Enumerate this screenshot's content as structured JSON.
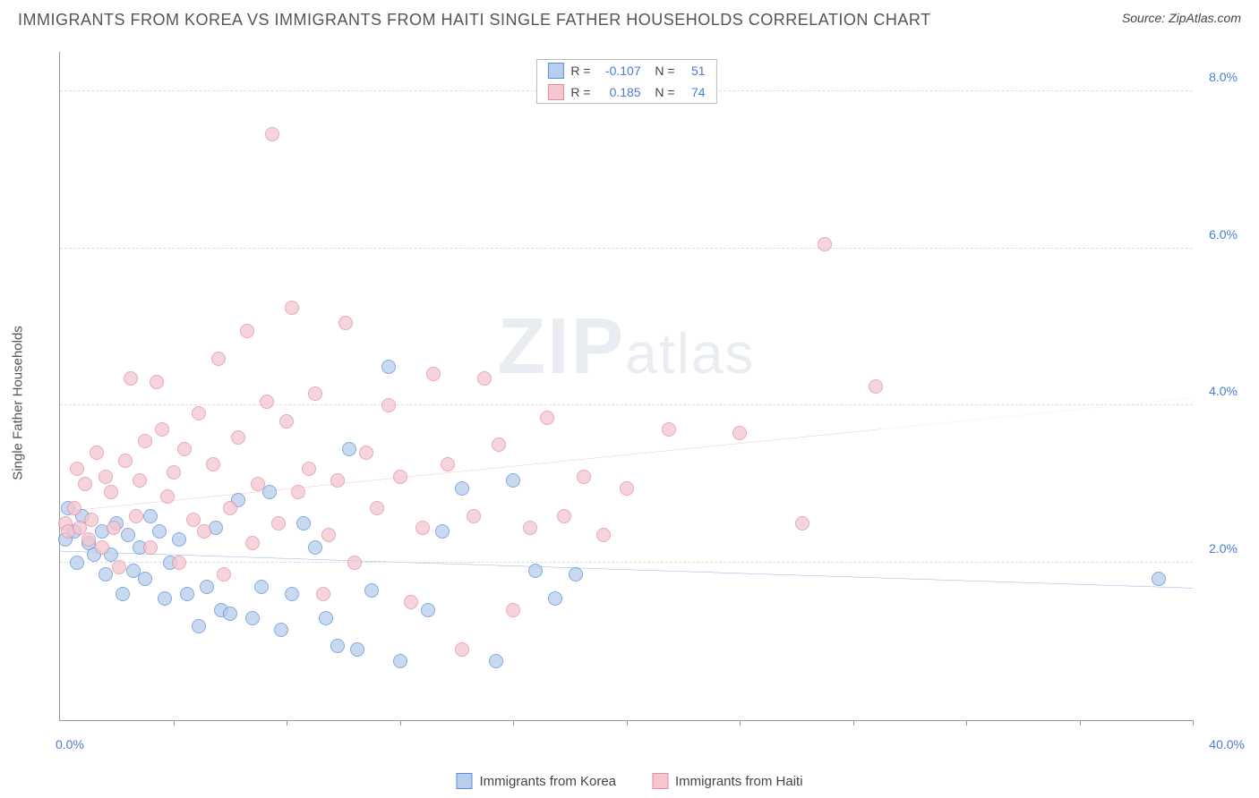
{
  "header": {
    "title": "IMMIGRANTS FROM KOREA VS IMMIGRANTS FROM HAITI SINGLE FATHER HOUSEHOLDS CORRELATION CHART",
    "source_prefix": "Source: ",
    "source_site": "ZipAtlas.com"
  },
  "watermark": {
    "main": "ZIP",
    "tail": "atlas"
  },
  "chart": {
    "type": "scatter",
    "y_axis_title": "Single Father Households",
    "xlim": [
      0,
      40
    ],
    "ylim": [
      0,
      8.5
    ],
    "x_tick_count": 10,
    "y_ticks": [
      2.0,
      4.0,
      6.0,
      8.0
    ],
    "y_tick_labels": [
      "2.0%",
      "4.0%",
      "6.0%",
      "8.0%"
    ],
    "x_min_label": "0.0%",
    "x_max_label": "40.0%",
    "background_color": "#ffffff",
    "grid_color": "#dddddd",
    "series": [
      {
        "key": "korea",
        "label": "Immigrants from Korea",
        "r_value": "-0.107",
        "n_value": "51",
        "fill": "#b7ceec",
        "stroke": "#5a8fd6",
        "trend": {
          "y_at_xmin": 2.15,
          "y_at_xmax": 1.68,
          "solid_until_x": 40
        },
        "marker_radius": 8,
        "points": [
          [
            0.2,
            2.3
          ],
          [
            0.3,
            2.7
          ],
          [
            0.5,
            2.4
          ],
          [
            0.6,
            2.0
          ],
          [
            0.8,
            2.6
          ],
          [
            1.0,
            2.25
          ],
          [
            1.2,
            2.1
          ],
          [
            1.5,
            2.4
          ],
          [
            1.6,
            1.85
          ],
          [
            1.8,
            2.1
          ],
          [
            2.0,
            2.5
          ],
          [
            2.2,
            1.6
          ],
          [
            2.4,
            2.35
          ],
          [
            2.6,
            1.9
          ],
          [
            2.8,
            2.2
          ],
          [
            3.0,
            1.8
          ],
          [
            3.2,
            2.6
          ],
          [
            3.5,
            2.4
          ],
          [
            3.7,
            1.55
          ],
          [
            3.9,
            2.0
          ],
          [
            4.2,
            2.3
          ],
          [
            4.5,
            1.6
          ],
          [
            4.9,
            1.2
          ],
          [
            5.2,
            1.7
          ],
          [
            5.5,
            2.45
          ],
          [
            5.7,
            1.4
          ],
          [
            6.0,
            1.35
          ],
          [
            6.3,
            2.8
          ],
          [
            6.8,
            1.3
          ],
          [
            7.1,
            1.7
          ],
          [
            7.4,
            2.9
          ],
          [
            7.8,
            1.15
          ],
          [
            8.2,
            1.6
          ],
          [
            8.6,
            2.5
          ],
          [
            9.0,
            2.2
          ],
          [
            9.4,
            1.3
          ],
          [
            9.8,
            0.95
          ],
          [
            10.2,
            3.45
          ],
          [
            10.5,
            0.9
          ],
          [
            11.0,
            1.65
          ],
          [
            11.6,
            4.5
          ],
          [
            12.0,
            0.75
          ],
          [
            13.0,
            1.4
          ],
          [
            13.5,
            2.4
          ],
          [
            14.2,
            2.95
          ],
          [
            15.4,
            0.75
          ],
          [
            16.0,
            3.05
          ],
          [
            16.8,
            1.9
          ],
          [
            17.5,
            1.55
          ],
          [
            18.2,
            1.85
          ],
          [
            38.8,
            1.8
          ]
        ]
      },
      {
        "key": "haiti",
        "label": "Immigrants from Haiti",
        "r_value": "0.185",
        "n_value": "74",
        "fill": "#f4c6cf",
        "stroke": "#e38ba1",
        "trend": {
          "y_at_xmin": 2.65,
          "y_at_xmax": 4.1,
          "solid_until_x": 29
        },
        "marker_radius": 8,
        "points": [
          [
            0.2,
            2.5
          ],
          [
            0.3,
            2.4
          ],
          [
            0.5,
            2.7
          ],
          [
            0.6,
            3.2
          ],
          [
            0.7,
            2.45
          ],
          [
            0.9,
            3.0
          ],
          [
            1.0,
            2.3
          ],
          [
            1.1,
            2.55
          ],
          [
            1.3,
            3.4
          ],
          [
            1.5,
            2.2
          ],
          [
            1.6,
            3.1
          ],
          [
            1.8,
            2.9
          ],
          [
            1.9,
            2.45
          ],
          [
            2.1,
            1.95
          ],
          [
            2.3,
            3.3
          ],
          [
            2.5,
            4.35
          ],
          [
            2.7,
            2.6
          ],
          [
            2.8,
            3.05
          ],
          [
            3.0,
            3.55
          ],
          [
            3.2,
            2.2
          ],
          [
            3.4,
            4.3
          ],
          [
            3.6,
            3.7
          ],
          [
            3.8,
            2.85
          ],
          [
            4.0,
            3.15
          ],
          [
            4.2,
            2.0
          ],
          [
            4.4,
            3.45
          ],
          [
            4.7,
            2.55
          ],
          [
            4.9,
            3.9
          ],
          [
            5.1,
            2.4
          ],
          [
            5.4,
            3.25
          ],
          [
            5.6,
            4.6
          ],
          [
            5.8,
            1.85
          ],
          [
            6.0,
            2.7
          ],
          [
            6.3,
            3.6
          ],
          [
            6.6,
            4.95
          ],
          [
            6.8,
            2.25
          ],
          [
            7.0,
            3.0
          ],
          [
            7.3,
            4.05
          ],
          [
            7.5,
            7.45
          ],
          [
            7.7,
            2.5
          ],
          [
            8.0,
            3.8
          ],
          [
            8.2,
            5.25
          ],
          [
            8.4,
            2.9
          ],
          [
            8.8,
            3.2
          ],
          [
            9.0,
            4.15
          ],
          [
            9.3,
            1.6
          ],
          [
            9.5,
            2.35
          ],
          [
            9.8,
            3.05
          ],
          [
            10.1,
            5.05
          ],
          [
            10.4,
            2.0
          ],
          [
            10.8,
            3.4
          ],
          [
            11.2,
            2.7
          ],
          [
            11.6,
            4.0
          ],
          [
            12.0,
            3.1
          ],
          [
            12.4,
            1.5
          ],
          [
            12.8,
            2.45
          ],
          [
            13.2,
            4.4
          ],
          [
            13.7,
            3.25
          ],
          [
            14.2,
            0.9
          ],
          [
            14.6,
            2.6
          ],
          [
            15.0,
            4.35
          ],
          [
            15.5,
            3.5
          ],
          [
            16.0,
            1.4
          ],
          [
            16.6,
            2.45
          ],
          [
            17.2,
            3.85
          ],
          [
            17.8,
            2.6
          ],
          [
            18.5,
            3.1
          ],
          [
            19.2,
            2.35
          ],
          [
            20.0,
            2.95
          ],
          [
            21.5,
            3.7
          ],
          [
            24.0,
            3.65
          ],
          [
            26.2,
            2.5
          ],
          [
            27.0,
            6.05
          ],
          [
            28.8,
            4.25
          ]
        ]
      }
    ]
  },
  "legend_bottom": {
    "items": [
      {
        "label_path": "chart.series.0.label",
        "fill": "#b7ceec",
        "stroke": "#5a8fd6"
      },
      {
        "label_path": "chart.series.1.label",
        "fill": "#f4c6cf",
        "stroke": "#e38ba1"
      }
    ]
  }
}
